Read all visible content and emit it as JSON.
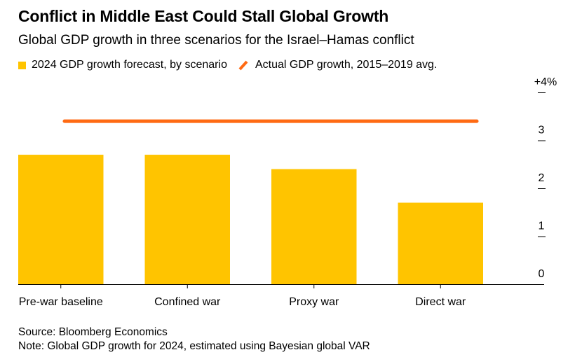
{
  "title": "Conflict in Middle East Could Stall Global Growth",
  "subtitle": "Global GDP growth in three scenarios for the Israel–Hamas conflict",
  "legend": {
    "bar_label": "2024 GDP growth forecast, by scenario",
    "line_label": "Actual GDP growth, 2015–2019 avg."
  },
  "colors": {
    "bar": "#FFC400",
    "line": "#FF6A13",
    "axis": "#000000"
  },
  "chart_data": {
    "type": "bar",
    "categories": [
      "Pre-war baseline",
      "Confined war",
      "Proxy war",
      "Direct war"
    ],
    "series": [
      {
        "name": "2024 GDP growth forecast, by scenario",
        "values": [
          2.7,
          2.7,
          2.4,
          1.7
        ]
      }
    ],
    "reference_line": {
      "name": "Actual GDP growth, 2015–2019 avg.",
      "value": 3.4
    },
    "ylim": [
      0,
      4
    ],
    "yticks": [
      0,
      1,
      2,
      3,
      4
    ],
    "ytick_labels": [
      "0",
      "1",
      "2",
      "3",
      "+4%"
    ],
    "grid": false,
    "legend_position": "top-left"
  },
  "footer": {
    "source": "Source: Bloomberg Economics",
    "note": "Note: Global GDP growth for 2024, estimated using Bayesian global VAR"
  }
}
